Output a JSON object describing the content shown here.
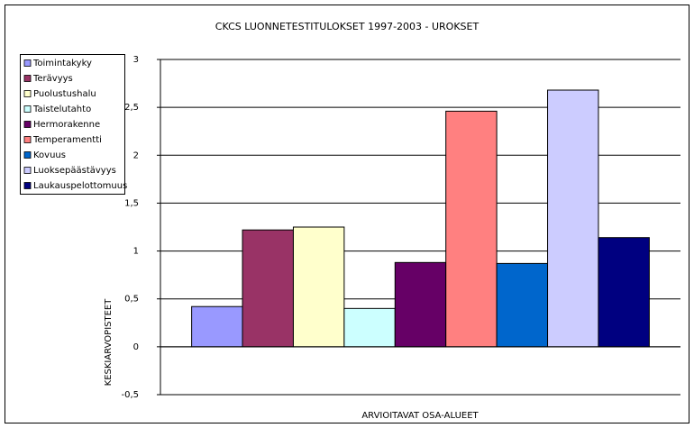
{
  "chart_data": {
    "type": "bar",
    "title": "CKCS LUONNETESTITULOKSET 1997-2003 - UROKSET",
    "x_label": "ARVIOITAVAT OSA-ALUEET",
    "y_label": "KESKIARVOPISTEET",
    "categories": [
      null
    ],
    "series": [
      {
        "name": "Toimintakyky",
        "color": "#9999ff",
        "values": [
          0.42
        ]
      },
      {
        "name": "Terävyys",
        "color": "#993366",
        "values": [
          1.22
        ]
      },
      {
        "name": "Puolustushalu",
        "color": "#ffffcc",
        "values": [
          1.25
        ]
      },
      {
        "name": "Taistelutahto",
        "color": "#ccffff",
        "values": [
          0.4
        ]
      },
      {
        "name": "Hermorakenne",
        "color": "#660066",
        "values": [
          0.88
        ]
      },
      {
        "name": "Temperamentti",
        "color": "#ff8080",
        "values": [
          2.46
        ]
      },
      {
        "name": "Kovuus",
        "color": "#0066cc",
        "values": [
          0.87
        ]
      },
      {
        "name": "Luoksepäästävyys",
        "color": "#ccccff",
        "values": [
          2.68
        ]
      },
      {
        "name": "Laukauspelottomuus",
        "color": "#000080",
        "values": [
          1.14
        ]
      }
    ],
    "ylim": [
      -0.5,
      3
    ],
    "yticks": [
      {
        "value": -0.5,
        "label": "-0,5"
      },
      0,
      {
        "value": 0.5,
        "label": "0,5"
      },
      1,
      {
        "value": 1.5,
        "label": "1,5"
      },
      2,
      {
        "value": 2.5,
        "label": "2,5"
      },
      3
    ],
    "grid": true,
    "legend": "left"
  }
}
